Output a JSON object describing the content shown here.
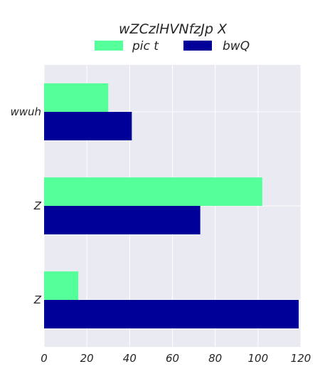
{
  "chart_data": {
    "type": "bar",
    "orientation": "horizontal",
    "title": "wZCzlHVNfzJp X",
    "xlabel": "",
    "ylabel": "",
    "categories": [
      "wwuh",
      "Z",
      "Z"
    ],
    "series": [
      {
        "name": "pic t",
        "values": [
          30,
          102,
          16
        ],
        "color": "#55ff99"
      },
      {
        "name": "bwQ",
        "values": [
          41,
          73,
          119
        ],
        "color": "#000099"
      }
    ],
    "xlim": [
      0,
      120
    ],
    "xticks": [
      0,
      20,
      40,
      60,
      80,
      100,
      120
    ],
    "grid": true,
    "legend": "top-center",
    "background": "#eaeaf2"
  }
}
